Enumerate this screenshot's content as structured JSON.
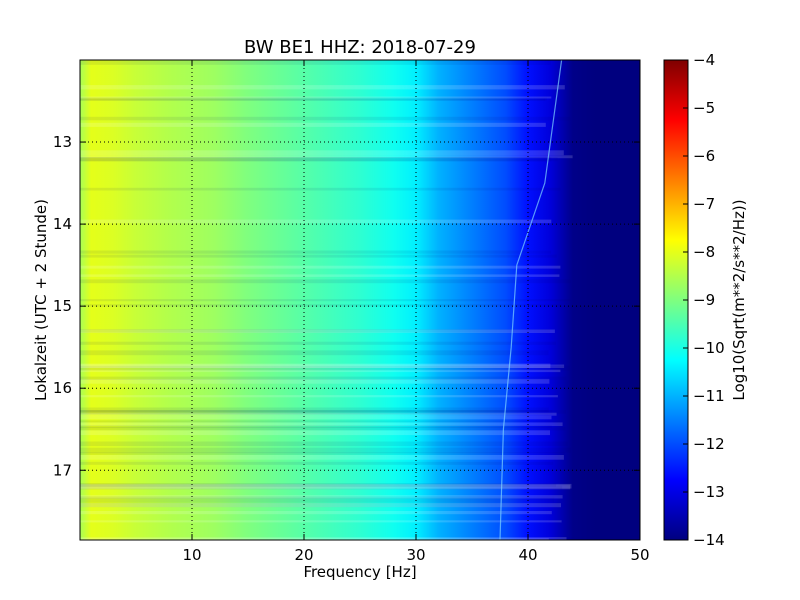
{
  "chart_data": {
    "type": "heatmap",
    "title": "BW BE1 HHZ: 2018-07-29",
    "xlabel": "Frequency [Hz]",
    "ylabel": "Lokalzeit (UTC + 2 Stunde)",
    "xlim": [
      0,
      50
    ],
    "ylim": [
      17.85,
      12.0
    ],
    "xticks": [
      10,
      20,
      30,
      40,
      50
    ],
    "yticks": [
      13,
      14,
      15,
      16,
      17
    ],
    "grid": true,
    "colorbar": {
      "label": "Log10(Sqrt(m**2/s**2/Hz))",
      "range": [
        -14,
        -4
      ],
      "ticks": [
        -14,
        -13,
        -12,
        -11,
        -10,
        -9,
        -8,
        -7,
        -6,
        -5,
        -4
      ],
      "colormap": [
        "#00007f",
        "#0000ff",
        "#007fff",
        "#00ffff",
        "#7fff7f",
        "#ffff00",
        "#ff7f00",
        "#ff0000",
        "#7f0000"
      ]
    },
    "spectrum_profile": {
      "frequency_hz": [
        0,
        1,
        3,
        5,
        8,
        12,
        15,
        20,
        25,
        28,
        30,
        32,
        35,
        38,
        40,
        42,
        44,
        46,
        50
      ],
      "level": [
        -8.6,
        -8.0,
        -8.1,
        -8.3,
        -8.5,
        -8.7,
        -9.0,
        -9.4,
        -9.8,
        -10.1,
        -10.4,
        -11.0,
        -11.5,
        -12.0,
        -12.6,
        -13.1,
        -13.9,
        -14.0,
        -14.0
      ]
    },
    "trace_line": {
      "label_hz_at_hour": [
        [
          12.0,
          43.0
        ],
        [
          13.5,
          41.5
        ],
        [
          14.5,
          39.0
        ],
        [
          15.5,
          38.5
        ],
        [
          16.5,
          37.8
        ],
        [
          17.85,
          37.5
        ]
      ]
    }
  }
}
